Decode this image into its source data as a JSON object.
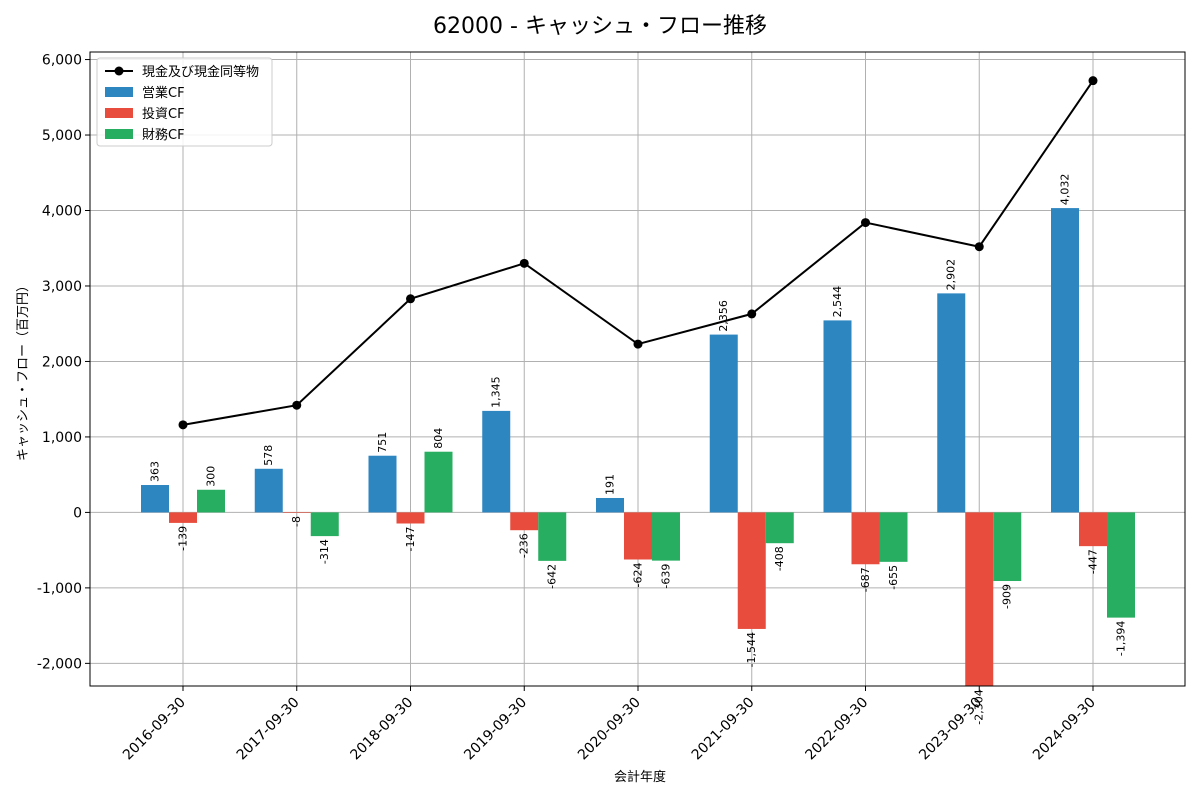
{
  "chart_data": {
    "type": "bar",
    "title": "62000 - キャッシュ・フロー推移",
    "xlabel": "会計年度",
    "ylabel": "キャッシュ・フロー（百万円）",
    "ylim": [
      -2300,
      6100
    ],
    "yticks": [
      -2000,
      -1000,
      0,
      1000,
      2000,
      3000,
      4000,
      5000,
      6000
    ],
    "ytick_labels": [
      "-2,000",
      "-1,000",
      "0",
      "1,000",
      "2,000",
      "3,000",
      "4,000",
      "5,000",
      "6,000"
    ],
    "grid": true,
    "legend_position": "top-left",
    "categories": [
      "2016-09-30",
      "2017-09-30",
      "2018-09-30",
      "2019-09-30",
      "2020-09-30",
      "2021-09-30",
      "2022-09-30",
      "2023-09-30",
      "2024-09-30"
    ],
    "series": [
      {
        "name": "営業CF",
        "kind": "bar",
        "color": "#2e86c1",
        "values": [
          363,
          578,
          751,
          1345,
          191,
          2356,
          2544,
          2902,
          4032
        ],
        "labels": [
          "363",
          "578",
          "751",
          "1,345",
          "191",
          "2,356",
          "2,544",
          "2,902",
          "4,032"
        ]
      },
      {
        "name": "投資CF",
        "kind": "bar",
        "color": "#e74c3c",
        "values": [
          -139,
          -8,
          -147,
          -236,
          -624,
          -1544,
          -687,
          -2304,
          -447
        ],
        "labels": [
          "-139",
          "-8",
          "-147",
          "-236",
          "-624",
          "-1,544",
          "-687",
          "-2,304",
          "-447"
        ]
      },
      {
        "name": "財務CF",
        "kind": "bar",
        "color": "#27ae60",
        "values": [
          300,
          -314,
          804,
          -642,
          -639,
          -408,
          -655,
          -909,
          -1394
        ],
        "labels": [
          "300",
          "-314",
          "804",
          "-642",
          "-639",
          "-408",
          "-655",
          "-909",
          "-1,394"
        ]
      },
      {
        "name": "現金及び現金同等物",
        "kind": "line",
        "color": "#000000",
        "values": [
          1160,
          1420,
          2830,
          3300,
          2230,
          2630,
          3840,
          3520,
          5720
        ]
      }
    ]
  }
}
